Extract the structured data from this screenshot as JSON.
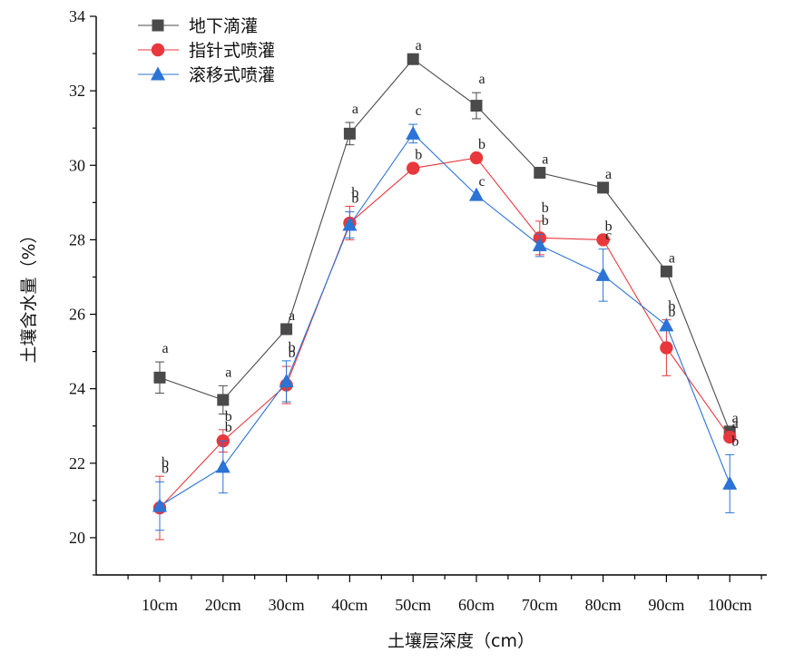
{
  "chart_data": {
    "type": "line",
    "xlabel": "土壤层深度（cm）",
    "ylabel": "土壤含水量（%）",
    "ylim": [
      19,
      34
    ],
    "yticks": [
      20,
      22,
      24,
      26,
      28,
      30,
      32,
      34
    ],
    "categories": [
      "10cm",
      "20cm",
      "30cm",
      "40cm",
      "50cm",
      "60cm",
      "70cm",
      "80cm",
      "90cm",
      "100cm"
    ],
    "legend_position": "top-left",
    "grid": false,
    "series": [
      {
        "name": "地下滴灌",
        "color": "#4a4a4a",
        "marker": "square",
        "values": [
          24.3,
          23.7,
          25.6,
          30.85,
          32.85,
          31.6,
          29.8,
          29.4,
          27.15,
          22.85
        ],
        "errors": [
          0.42,
          0.38,
          0.0,
          0.3,
          0.0,
          0.35,
          0.0,
          0.0,
          0.0,
          0.0
        ],
        "labels": [
          "a",
          "a",
          "a",
          "a",
          "a",
          "a",
          "a",
          "a",
          "a",
          "a"
        ]
      },
      {
        "name": "指针式喷灌",
        "color": "#e8383d",
        "marker": "circle",
        "values": [
          20.8,
          22.6,
          24.1,
          28.45,
          29.92,
          30.2,
          28.05,
          28.0,
          25.1,
          22.7
        ],
        "errors": [
          0.85,
          0.3,
          0.5,
          0.45,
          0.0,
          0.0,
          0.45,
          0.0,
          0.75,
          0.0
        ],
        "labels": [
          "b",
          "b",
          "b",
          "b",
          "b",
          "b",
          "b",
          "b",
          "b",
          "a"
        ]
      },
      {
        "name": "滚移式喷灌",
        "color": "#2b73d6",
        "marker": "triangle",
        "values": [
          20.85,
          21.9,
          24.2,
          28.4,
          30.85,
          29.2,
          27.85,
          27.05,
          25.7,
          21.45
        ],
        "errors": [
          0.65,
          0.7,
          0.55,
          0.35,
          0.25,
          0.0,
          0.3,
          0.7,
          0.0,
          0.78
        ],
        "labels": [
          "b",
          "b",
          "b",
          "b",
          "c",
          "c",
          "b",
          "c",
          "b",
          "b"
        ]
      }
    ]
  }
}
